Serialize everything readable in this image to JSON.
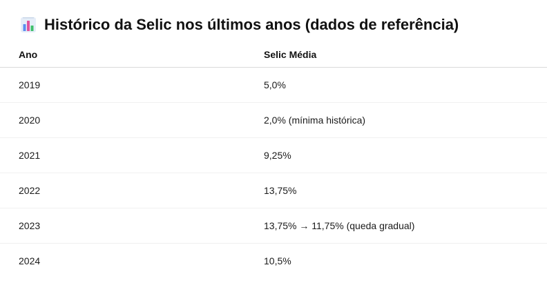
{
  "heading": {
    "icon": "bar-chart-icon",
    "text": "Histórico da Selic nos últimos anos (dados de referência)"
  },
  "table": {
    "headers": [
      "Ano",
      "Selic Média"
    ],
    "rows": [
      [
        "2019",
        "5,0%"
      ],
      [
        "2020",
        "2,0% (mínima histórica)"
      ],
      [
        "2021",
        "9,25%"
      ],
      [
        "2022",
        "13,75%"
      ],
      [
        "2023",
        "13,75% → 11,75% (queda gradual)"
      ],
      [
        "2024",
        "10,5%"
      ]
    ]
  },
  "colors": {
    "icon_bars": [
      "#3b82f6",
      "#ec4899",
      "#22c55e"
    ],
    "icon_background": "#dbeafe"
  }
}
